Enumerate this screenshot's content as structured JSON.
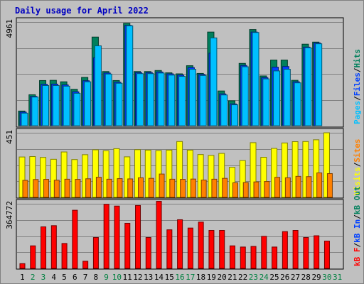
{
  "title": "Daily usage for April 2022",
  "colors": {
    "background": "#c0c0c0",
    "panel": "#c0c0c0",
    "grid": "#808080",
    "hits": "#00805c",
    "files": "#0040ff",
    "pages": "#00c0ff",
    "visits": "#ffff00",
    "sites": "#ff8000",
    "kb_in": "#0040ff",
    "kb_f": "#ff0000",
    "weekday_label": "#000000",
    "weekend_label": "#008040"
  },
  "chart_data": [
    {
      "type": "bar",
      "panel": "top",
      "ytick_label": "4961",
      "ylim": [
        0,
        4961
      ],
      "categories": [
        "1",
        "2",
        "3",
        "4",
        "5",
        "6",
        "7",
        "8",
        "9",
        "10",
        "11",
        "12",
        "13",
        "14",
        "15",
        "16",
        "17",
        "18",
        "19",
        "20",
        "21",
        "22",
        "23",
        "24",
        "25",
        "26",
        "27",
        "28",
        "29",
        "30",
        "31"
      ],
      "weekend_days": [
        "2",
        "3",
        "9",
        "10",
        "16",
        "17",
        "23",
        "24",
        "30",
        "31"
      ],
      "legend_labels": [
        "Pages",
        "/",
        "Files",
        "/",
        "Hits"
      ],
      "series": [
        {
          "name": "Hits",
          "values": [
            700,
            1480,
            2160,
            2170,
            2100,
            1740,
            2310,
            4240,
            2590,
            2160,
            4900,
            2590,
            2590,
            2640,
            2530,
            2480,
            2870,
            2500,
            4480,
            1660,
            1190,
            2980,
            4600,
            2380,
            3140,
            3140,
            2170,
            3900,
            4000,
            0,
            0
          ]
        },
        {
          "name": "Files",
          "values": [
            650,
            1400,
            1980,
            1990,
            1950,
            1620,
            2150,
            3250,
            2520,
            2080,
            4800,
            2540,
            2540,
            2570,
            2480,
            2420,
            2780,
            2450,
            3470,
            1520,
            1040,
            2880,
            4480,
            2300,
            2800,
            2830,
            2100,
            3760,
            3960,
            0,
            0
          ]
        },
        {
          "name": "Pages",
          "values": [
            600,
            1370,
            1920,
            1920,
            1890,
            1550,
            2100,
            3820,
            2470,
            2030,
            4780,
            2490,
            2490,
            2520,
            2420,
            2360,
            2700,
            2400,
            4200,
            1470,
            1000,
            2820,
            4460,
            2240,
            2620,
            2700,
            2050,
            3730,
            3920,
            0,
            0
          ]
        }
      ]
    },
    {
      "type": "bar",
      "panel": "middle",
      "ytick_label": "451",
      "ylim": [
        0,
        451
      ],
      "categories": [
        "1",
        "2",
        "3",
        "4",
        "5",
        "6",
        "7",
        "8",
        "9",
        "10",
        "11",
        "12",
        "13",
        "14",
        "15",
        "16",
        "17",
        "18",
        "19",
        "20",
        "21",
        "22",
        "23",
        "24",
        "25",
        "26",
        "27",
        "28",
        "29",
        "30",
        "31"
      ],
      "legend_labels": [
        "Visits",
        "/",
        "Sites"
      ],
      "series": [
        {
          "name": "Visits",
          "values": [
            282,
            285,
            279,
            266,
            317,
            264,
            298,
            332,
            326,
            340,
            283,
            333,
            330,
            327,
            330,
            390,
            330,
            299,
            293,
            307,
            210,
            257,
            382,
            280,
            342,
            380,
            389,
            390,
            402,
            451,
            0
          ]
        },
        {
          "name": "Sites",
          "values": [
            119,
            125,
            126,
            120,
            127,
            126,
            130,
            141,
            127,
            131,
            129,
            137,
            133,
            163,
            127,
            126,
            128,
            121,
            127,
            133,
            102,
            104,
            108,
            111,
            140,
            137,
            147,
            145,
            171,
            166,
            0
          ]
        }
      ]
    },
    {
      "type": "bar",
      "panel": "bottom",
      "ytick_label": "364772",
      "ylim": [
        0,
        544400
      ],
      "categories": [
        "1",
        "2",
        "3",
        "4",
        "5",
        "6",
        "7",
        "8",
        "9",
        "10",
        "11",
        "12",
        "13",
        "14",
        "15",
        "16",
        "17",
        "18",
        "19",
        "20",
        "21",
        "22",
        "23",
        "24",
        "25",
        "26",
        "27",
        "28",
        "29",
        "30",
        "31"
      ],
      "legend_labels": [
        "kB F",
        "/",
        "kB In",
        "/",
        "kB Out"
      ],
      "series": [
        {
          "name": "kB F",
          "values": [
            40000,
            190000,
            350000,
            360000,
            210000,
            490000,
            60000,
            260000,
            540000,
            525000,
            380000,
            530000,
            260000,
            565000,
            325000,
            410000,
            340000,
            390000,
            320000,
            320000,
            190000,
            180000,
            185000,
            270000,
            180000,
            310000,
            320000,
            260000,
            275000,
            230000,
            0
          ]
        }
      ]
    }
  ]
}
